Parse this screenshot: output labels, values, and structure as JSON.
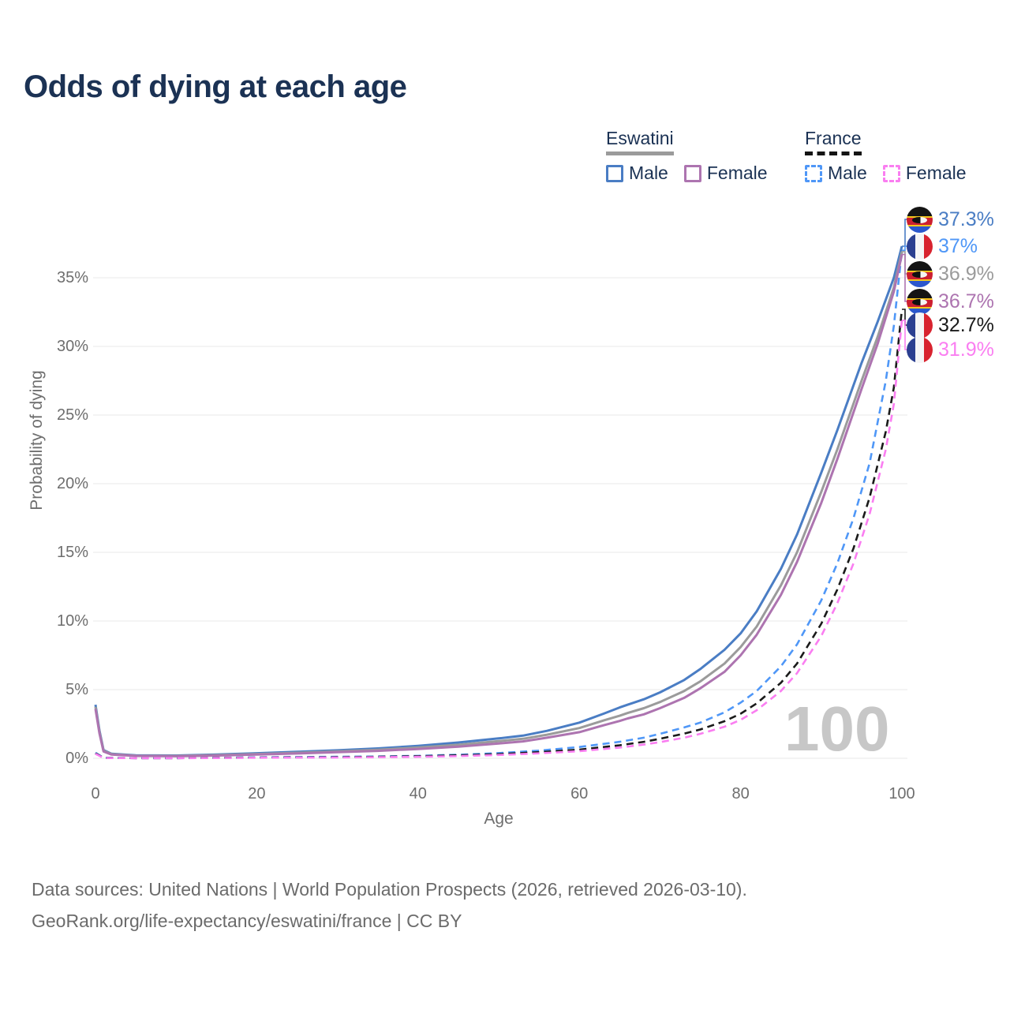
{
  "title": "Odds of dying at each age",
  "legend": {
    "groups": [
      {
        "name": "Eswatini",
        "line_style": "solid",
        "line_color": "#9b9b9b",
        "items": [
          {
            "label": "Male",
            "color": "#4a7dc4",
            "style": "solid"
          },
          {
            "label": "Female",
            "color": "#ad74b0",
            "style": "solid"
          }
        ]
      },
      {
        "name": "France",
        "line_style": "dashed",
        "line_color": "#141414",
        "items": [
          {
            "label": "Male",
            "color": "#4f97f7",
            "style": "dashed"
          },
          {
            "label": "Female",
            "color": "#fa7ef1",
            "style": "dashed"
          }
        ]
      }
    ]
  },
  "source": {
    "line1": "Data sources: United Nations | World Population Prospects (2026, retrieved 2026-03-10).",
    "line2": "GeoRank.org/life-expectancy/eswatini/france | CC BY"
  },
  "chart_data": {
    "type": "line",
    "title": "Odds of dying at each age",
    "xlabel": "Age",
    "ylabel": "Probability of dying",
    "units": "%",
    "xlim": [
      0,
      100
    ],
    "ylim": [
      0,
      37.5
    ],
    "x_ticks": [
      0,
      20,
      40,
      60,
      80,
      100
    ],
    "y_ticks_percent": [
      0,
      5,
      10,
      15,
      20,
      25,
      30,
      35
    ],
    "grid": "horizontal",
    "legend_position": "top-right",
    "watermark": "100",
    "label_row_y": [
      278,
      312,
      347,
      382,
      412,
      443
    ],
    "series": [
      {
        "name": "Eswatini Male",
        "country": "Eswatini",
        "sex": "Male",
        "style": "solid",
        "color": "#4a7dc4",
        "end_value": 37.3,
        "end_label": "37.3%",
        "flag": "esw",
        "points": [
          [
            0,
            3.9
          ],
          [
            0.5,
            2.0
          ],
          [
            1,
            0.6
          ],
          [
            2,
            0.33
          ],
          [
            5,
            0.22
          ],
          [
            10,
            0.2
          ],
          [
            15,
            0.27
          ],
          [
            20,
            0.37
          ],
          [
            25,
            0.47
          ],
          [
            30,
            0.58
          ],
          [
            35,
            0.72
          ],
          [
            40,
            0.9
          ],
          [
            45,
            1.15
          ],
          [
            50,
            1.45
          ],
          [
            53,
            1.65
          ],
          [
            56,
            2.0
          ],
          [
            60,
            2.6
          ],
          [
            63,
            3.25
          ],
          [
            65,
            3.7
          ],
          [
            66,
            3.9
          ],
          [
            68,
            4.3
          ],
          [
            70,
            4.8
          ],
          [
            73,
            5.7
          ],
          [
            75,
            6.5
          ],
          [
            78,
            7.9
          ],
          [
            80,
            9.1
          ],
          [
            82,
            10.7
          ],
          [
            85,
            13.8
          ],
          [
            87,
            16.3
          ],
          [
            90,
            20.8
          ],
          [
            92,
            23.9
          ],
          [
            95,
            28.8
          ],
          [
            97,
            31.8
          ],
          [
            99,
            35.0
          ],
          [
            100,
            37.3
          ]
        ]
      },
      {
        "name": "France Male",
        "country": "France",
        "sex": "Male",
        "style": "dashed",
        "color": "#4f97f7",
        "end_value": 37.0,
        "end_label": "37%",
        "flag": "fra",
        "points": [
          [
            0,
            0.4
          ],
          [
            1,
            0.04
          ],
          [
            5,
            0.01
          ],
          [
            10,
            0.012
          ],
          [
            15,
            0.04
          ],
          [
            20,
            0.07
          ],
          [
            25,
            0.09
          ],
          [
            30,
            0.11
          ],
          [
            35,
            0.13
          ],
          [
            40,
            0.18
          ],
          [
            45,
            0.26
          ],
          [
            50,
            0.38
          ],
          [
            55,
            0.56
          ],
          [
            60,
            0.82
          ],
          [
            65,
            1.2
          ],
          [
            68,
            1.5
          ],
          [
            70,
            1.78
          ],
          [
            73,
            2.25
          ],
          [
            75,
            2.6
          ],
          [
            78,
            3.35
          ],
          [
            80,
            4.05
          ],
          [
            82,
            4.9
          ],
          [
            85,
            6.7
          ],
          [
            87,
            8.3
          ],
          [
            90,
            11.5
          ],
          [
            92,
            14.2
          ],
          [
            94,
            17.5
          ],
          [
            96,
            21.5
          ],
          [
            98,
            27.5
          ],
          [
            99,
            31.5
          ],
          [
            100,
            37.0
          ]
        ]
      },
      {
        "name": "Eswatini Total",
        "country": "Eswatini",
        "sex": "Both",
        "style": "solid",
        "color": "#9b9b9b",
        "end_value": 36.9,
        "end_label": "36.9%",
        "flag": "esw",
        "points": [
          [
            0,
            3.75
          ],
          [
            0.5,
            1.9
          ],
          [
            1,
            0.55
          ],
          [
            2,
            0.3
          ],
          [
            5,
            0.19
          ],
          [
            10,
            0.17
          ],
          [
            15,
            0.23
          ],
          [
            20,
            0.31
          ],
          [
            25,
            0.4
          ],
          [
            30,
            0.5
          ],
          [
            35,
            0.62
          ],
          [
            40,
            0.78
          ],
          [
            45,
            0.98
          ],
          [
            50,
            1.25
          ],
          [
            53,
            1.42
          ],
          [
            56,
            1.72
          ],
          [
            60,
            2.2
          ],
          [
            63,
            2.75
          ],
          [
            65,
            3.1
          ],
          [
            66,
            3.3
          ],
          [
            68,
            3.65
          ],
          [
            70,
            4.1
          ],
          [
            73,
            4.9
          ],
          [
            75,
            5.6
          ],
          [
            78,
            6.9
          ],
          [
            80,
            8.1
          ],
          [
            82,
            9.6
          ],
          [
            85,
            12.6
          ],
          [
            87,
            15.0
          ],
          [
            90,
            19.4
          ],
          [
            92,
            22.5
          ],
          [
            95,
            27.5
          ],
          [
            97,
            30.7
          ],
          [
            99,
            34.3
          ],
          [
            100,
            36.9
          ]
        ]
      },
      {
        "name": "Eswatini Female",
        "country": "Eswatini",
        "sex": "Female",
        "style": "solid",
        "color": "#ad74b0",
        "end_value": 36.7,
        "end_label": "36.7%",
        "flag": "esw",
        "points": [
          [
            0,
            3.6
          ],
          [
            0.5,
            1.8
          ],
          [
            1,
            0.5
          ],
          [
            2,
            0.27
          ],
          [
            5,
            0.17
          ],
          [
            10,
            0.15
          ],
          [
            15,
            0.2
          ],
          [
            20,
            0.27
          ],
          [
            25,
            0.35
          ],
          [
            30,
            0.44
          ],
          [
            35,
            0.54
          ],
          [
            40,
            0.68
          ],
          [
            45,
            0.85
          ],
          [
            50,
            1.08
          ],
          [
            53,
            1.23
          ],
          [
            56,
            1.5
          ],
          [
            60,
            1.9
          ],
          [
            63,
            2.4
          ],
          [
            65,
            2.72
          ],
          [
            66,
            2.9
          ],
          [
            68,
            3.2
          ],
          [
            70,
            3.65
          ],
          [
            73,
            4.4
          ],
          [
            75,
            5.1
          ],
          [
            78,
            6.3
          ],
          [
            80,
            7.5
          ],
          [
            82,
            9.0
          ],
          [
            85,
            11.9
          ],
          [
            87,
            14.3
          ],
          [
            90,
            18.6
          ],
          [
            92,
            21.8
          ],
          [
            95,
            26.9
          ],
          [
            97,
            30.2
          ],
          [
            99,
            34.0
          ],
          [
            100,
            36.7
          ]
        ]
      },
      {
        "name": "France Total",
        "country": "France",
        "sex": "Both",
        "style": "dashed",
        "color": "#1a1a1a",
        "end_value": 32.7,
        "end_label": "32.7%",
        "flag": "fra",
        "points": [
          [
            0,
            0.36
          ],
          [
            1,
            0.03
          ],
          [
            5,
            0.01
          ],
          [
            10,
            0.01
          ],
          [
            15,
            0.03
          ],
          [
            20,
            0.05
          ],
          [
            25,
            0.07
          ],
          [
            30,
            0.08
          ],
          [
            35,
            0.11
          ],
          [
            40,
            0.15
          ],
          [
            45,
            0.21
          ],
          [
            50,
            0.3
          ],
          [
            55,
            0.45
          ],
          [
            60,
            0.63
          ],
          [
            65,
            0.95
          ],
          [
            68,
            1.2
          ],
          [
            70,
            1.42
          ],
          [
            73,
            1.8
          ],
          [
            75,
            2.1
          ],
          [
            78,
            2.7
          ],
          [
            80,
            3.25
          ],
          [
            82,
            4.0
          ],
          [
            85,
            5.5
          ],
          [
            87,
            6.9
          ],
          [
            90,
            9.8
          ],
          [
            92,
            12.3
          ],
          [
            94,
            15.3
          ],
          [
            96,
            19.0
          ],
          [
            98,
            23.8
          ],
          [
            99,
            27.0
          ],
          [
            100,
            32.7
          ]
        ]
      },
      {
        "name": "France Female",
        "country": "France",
        "sex": "Female",
        "style": "dashed",
        "color": "#fa7ef1",
        "end_value": 31.9,
        "end_label": "31.9%",
        "flag": "fra",
        "points": [
          [
            0,
            0.33
          ],
          [
            1,
            0.025
          ],
          [
            5,
            0.01
          ],
          [
            10,
            0.01
          ],
          [
            15,
            0.02
          ],
          [
            20,
            0.04
          ],
          [
            25,
            0.05
          ],
          [
            30,
            0.06
          ],
          [
            35,
            0.08
          ],
          [
            40,
            0.11
          ],
          [
            45,
            0.16
          ],
          [
            50,
            0.24
          ],
          [
            55,
            0.36
          ],
          [
            60,
            0.52
          ],
          [
            65,
            0.78
          ],
          [
            68,
            1.0
          ],
          [
            70,
            1.18
          ],
          [
            73,
            1.5
          ],
          [
            75,
            1.78
          ],
          [
            78,
            2.3
          ],
          [
            80,
            2.8
          ],
          [
            82,
            3.5
          ],
          [
            85,
            4.9
          ],
          [
            87,
            6.2
          ],
          [
            90,
            8.9
          ],
          [
            92,
            11.3
          ],
          [
            94,
            14.2
          ],
          [
            96,
            17.8
          ],
          [
            98,
            22.5
          ],
          [
            99,
            25.8
          ],
          [
            100,
            31.9
          ]
        ]
      }
    ]
  }
}
